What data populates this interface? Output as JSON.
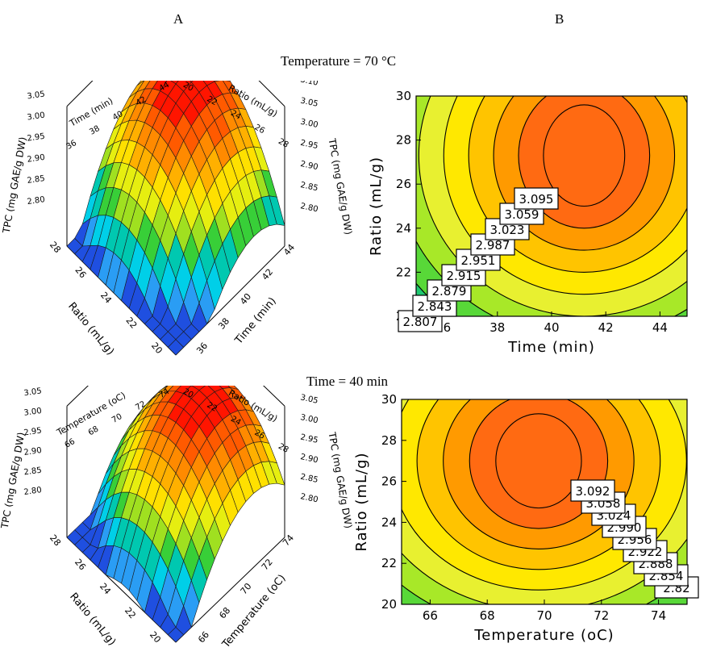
{
  "figure": {
    "panel_a_label": "A",
    "panel_b_label": "B",
    "caption_top": "Temperature = 70 °C",
    "caption_bottom": "Time = 40 min"
  },
  "colors": {
    "band_colors": [
      "#1f4fe0",
      "#2a9df4",
      "#00cfe8",
      "#00c8b0",
      "#38cf38",
      "#a0e020",
      "#e6ee10",
      "#ffe000",
      "#ffb000",
      "#ff8a00",
      "#ff5a00",
      "#ff1500"
    ],
    "contour_line": "#000000",
    "mesh_line": "#1a1a1a",
    "axis_line": "#000000"
  },
  "chart_data": [
    {
      "id": "top-3d",
      "type": "surface",
      "z_label": "TPC (mg GAE/g DW)",
      "x_label": "Time (min)",
      "y_label": "Ratio (mL/g)",
      "z_ticks": [
        "2.80",
        "2.85",
        "2.90",
        "2.95",
        "3.00",
        "3.05",
        "3.10"
      ],
      "x_ticks_front": [
        "36",
        "38",
        "40",
        "42",
        "44"
      ],
      "y_ticks_front": [
        "20",
        "22",
        "24",
        "26",
        "28"
      ],
      "x_ticks_back": [
        "36",
        "38",
        "40",
        "42",
        "44"
      ],
      "y_ticks_back": [
        "20",
        "22",
        "24",
        "26",
        "28"
      ],
      "x_range": [
        35,
        45
      ],
      "y_range": [
        20,
        30
      ],
      "z_range": [
        2.8,
        3.11
      ],
      "peak": {
        "x": 41,
        "y": 27.2,
        "z": 3.11
      }
    },
    {
      "id": "top-contour",
      "type": "contour",
      "xlabel": "Time (min)",
      "ylabel": "Ratio (mL/g)",
      "xlim": [
        35,
        45
      ],
      "ylim": [
        20,
        30
      ],
      "x_ticks": [
        "36",
        "38",
        "40",
        "42",
        "44"
      ],
      "y_ticks": [
        "20",
        "22",
        "24",
        "26",
        "28",
        "30"
      ],
      "center": {
        "x": 41.2,
        "y": 27.3
      },
      "levels": [
        3.095,
        3.059,
        3.023,
        2.987,
        2.951,
        2.915,
        2.879,
        2.843,
        2.807
      ],
      "level_labels": [
        "3.095",
        "3.059",
        "3.023",
        "2.987",
        "2.951",
        "2.915",
        "2.879",
        "2.843",
        "2.807"
      ]
    },
    {
      "id": "bottom-3d",
      "type": "surface",
      "z_label": "TPC (mg GAE/g DW)",
      "x_label": "Temperature (oC)",
      "y_label": "Ratio (mL/g)",
      "z_ticks": [
        "2.80",
        "2.85",
        "2.90",
        "2.95",
        "3.00",
        "3.05",
        "3.10"
      ],
      "x_ticks_front": [
        "66",
        "68",
        "70",
        "72",
        "74"
      ],
      "y_ticks_front": [
        "20",
        "22",
        "24",
        "26",
        "28"
      ],
      "x_ticks_back": [
        "66",
        "68",
        "70",
        "72",
        "74"
      ],
      "y_ticks_back": [
        "20",
        "22",
        "24",
        "26",
        "28"
      ],
      "x_range": [
        65,
        75
      ],
      "y_range": [
        20,
        30
      ],
      "z_range": [
        2.8,
        3.11
      ],
      "peak": {
        "x": 69.6,
        "y": 27.0,
        "z": 3.11
      }
    },
    {
      "id": "bottom-contour",
      "type": "contour",
      "xlabel": "Temperature (oC)",
      "ylabel": "Ratio (mL/g)",
      "xlim": [
        65,
        75
      ],
      "ylim": [
        20,
        30
      ],
      "x_ticks": [
        "66",
        "68",
        "70",
        "72",
        "74"
      ],
      "y_ticks": [
        "20",
        "22",
        "24",
        "26",
        "28",
        "30"
      ],
      "center": {
        "x": 69.8,
        "y": 27.0
      },
      "levels": [
        3.092,
        3.058,
        3.024,
        2.99,
        2.956,
        2.922,
        2.888,
        2.854,
        2.82
      ],
      "level_labels": [
        "3.092",
        "3.058",
        "3.024",
        "2.990",
        "2.956",
        "2.922",
        "2.888",
        "2.854",
        "2.82"
      ]
    }
  ]
}
